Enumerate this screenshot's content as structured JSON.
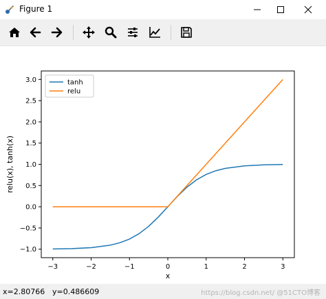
{
  "window": {
    "title": "Figure 1",
    "icon": "matplotlib-figure-icon"
  },
  "toolbar": {
    "buttons": [
      {
        "name": "home-icon",
        "tooltip": "Home"
      },
      {
        "name": "back-arrow-icon",
        "tooltip": "Back"
      },
      {
        "name": "forward-arrow-icon",
        "tooltip": "Forward"
      },
      {
        "name": "pan-icon",
        "tooltip": "Pan"
      },
      {
        "name": "zoom-icon",
        "tooltip": "Zoom"
      },
      {
        "name": "subplots-icon",
        "tooltip": "Subplots"
      },
      {
        "name": "edit-axis-icon",
        "tooltip": "Customize"
      },
      {
        "name": "save-icon",
        "tooltip": "Save"
      }
    ]
  },
  "status": {
    "x_readout": "x=2.80766",
    "y_readout": "y=0.486609",
    "watermark": "https://blog.csdn.net/ @51CTO博客"
  },
  "chart_data": {
    "type": "line",
    "title": "",
    "xlabel": "x",
    "ylabel": "relu(x), tanh(x)",
    "xlim": [
      -3.3,
      3.3
    ],
    "ylim": [
      -1.2,
      3.2
    ],
    "xticks": [
      -3,
      -2,
      -1,
      0,
      1,
      2,
      3
    ],
    "xtick_labels": [
      "−3",
      "−2",
      "−1",
      "0",
      "1",
      "2",
      "3"
    ],
    "yticks": [
      -1.0,
      -0.5,
      0.0,
      0.5,
      1.0,
      1.5,
      2.0,
      2.5,
      3.0
    ],
    "ytick_labels": [
      "−1.0",
      "−0.5",
      "0.0",
      "0.5",
      "1.0",
      "1.5",
      "2.0",
      "2.5",
      "3.0"
    ],
    "legend_position": "upper-left",
    "grid": false,
    "series": [
      {
        "name": "tanh",
        "color": "#1f77b4",
        "x": [
          -3.0,
          -2.5,
          -2.0,
          -1.5,
          -1.25,
          -1.0,
          -0.75,
          -0.5,
          -0.25,
          0.0,
          0.25,
          0.5,
          0.75,
          1.0,
          1.25,
          1.5,
          2.0,
          2.5,
          3.0
        ],
        "y": [
          -0.995,
          -0.987,
          -0.964,
          -0.905,
          -0.848,
          -0.762,
          -0.635,
          -0.462,
          -0.245,
          0.0,
          0.245,
          0.462,
          0.635,
          0.762,
          0.848,
          0.905,
          0.964,
          0.987,
          0.995
        ]
      },
      {
        "name": "relu",
        "color": "#ff7f0e",
        "x": [
          -3.0,
          0.0,
          3.0
        ],
        "y": [
          0.0,
          0.0,
          3.0
        ]
      }
    ]
  }
}
